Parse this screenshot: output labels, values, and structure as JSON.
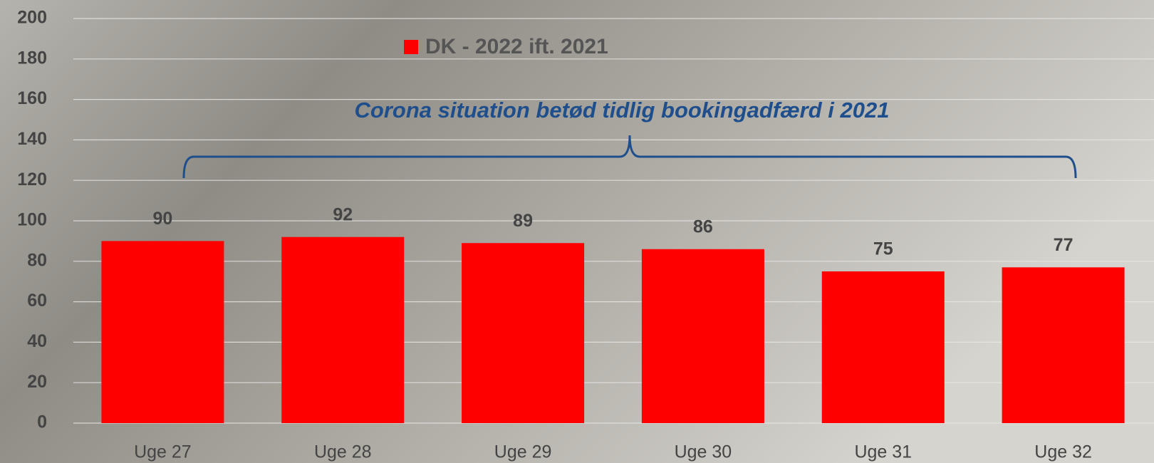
{
  "chart_data": {
    "type": "bar",
    "legend": "top-center",
    "annotation": "Corona situation betød tidlig bookingadfærd i 2021",
    "categories": [
      "Uge 27",
      "Uge 28",
      "Uge 29",
      "Uge 30",
      "Uge 31",
      "Uge 32"
    ],
    "series": [
      {
        "name": "DK - 2022 ift. 2021",
        "color": "#ff0000",
        "values": [
          90,
          92,
          89,
          86,
          75,
          77
        ]
      }
    ],
    "ylim": [
      0,
      200
    ],
    "yticks": [
      0,
      20,
      40,
      60,
      80,
      100,
      120,
      140,
      160,
      180,
      200
    ],
    "grid": true
  }
}
